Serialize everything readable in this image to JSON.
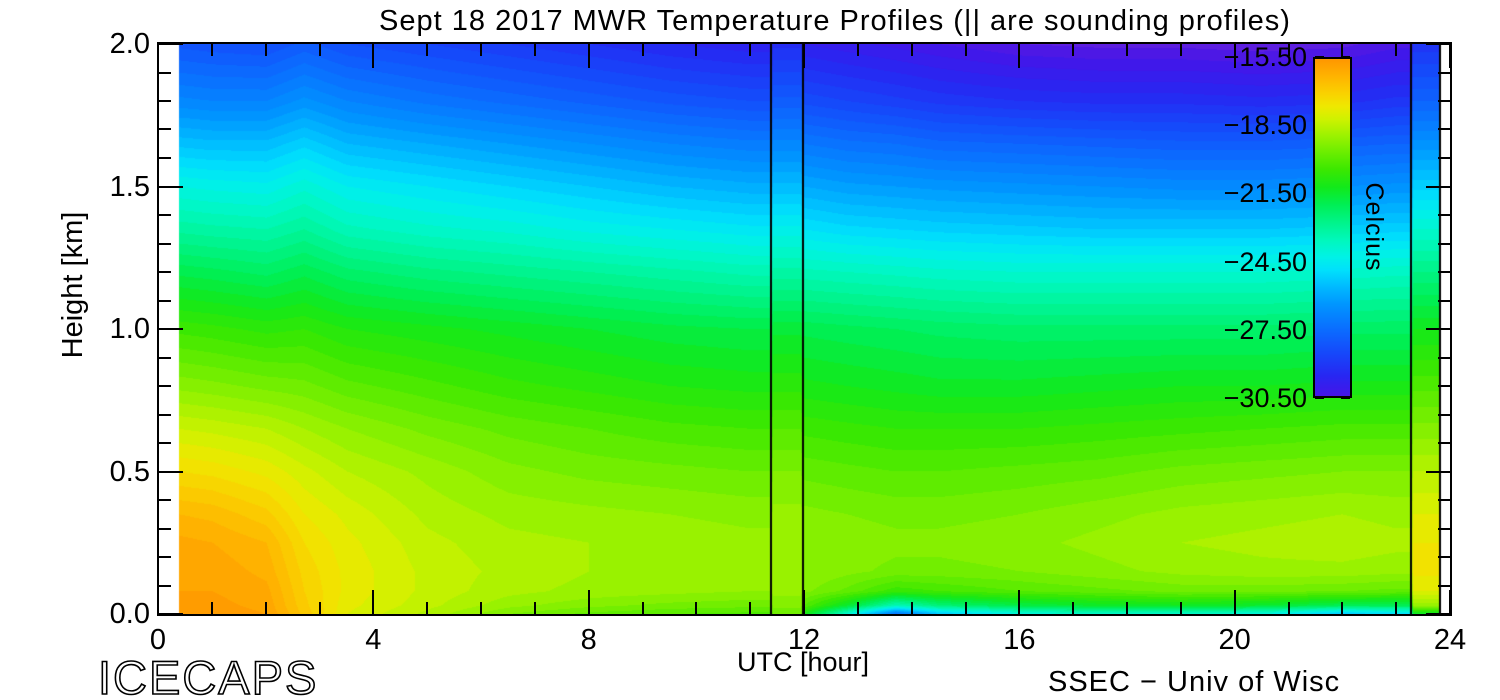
{
  "title": "Sept 18 2017 MWR Temperature Profiles (|| are sounding profiles)",
  "footer": {
    "left": "ICECAPS",
    "right": "SSEC − Univ of Wisc"
  },
  "chart_data": {
    "type": "heatmap",
    "title": "Sept 18 2017 MWR Temperature Profiles (|| are sounding profiles)",
    "xlabel": "UTC [hour]",
    "ylabel": "Height [km]",
    "colorbar_label": "Celcius",
    "xlim": [
      0,
      24
    ],
    "ylim": [
      0,
      2
    ],
    "x_ticks": [
      "0",
      "4",
      "8",
      "12",
      "16",
      "20",
      "24"
    ],
    "x_tick_values": [
      0,
      4,
      8,
      12,
      16,
      20,
      24
    ],
    "x_minor_step": 1,
    "y_ticks": [
      "0.0",
      "0.5",
      "1.0",
      "1.5",
      "2.0"
    ],
    "y_tick_values": [
      0,
      0.5,
      1,
      1.5,
      2
    ],
    "y_minor_step": 0.1,
    "colorbar_ticks": [
      "−15.50",
      "−18.50",
      "−21.50",
      "−24.50",
      "−27.50",
      "−30.50"
    ],
    "colorbar_tick_values": [
      -15.5,
      -18.5,
      -21.5,
      -24.5,
      -27.5,
      -30.5
    ],
    "temp_range": [
      -30.5,
      -15.5
    ],
    "contour_step": 0.3,
    "data_time_range": [
      0.37,
      23.81
    ],
    "sounding_lines": [
      11.38,
      11.98,
      23.28,
      23.81
    ],
    "palette": [
      [
        -31.5,
        "#7A2CD6"
      ],
      [
        -30.5,
        "#4515E8"
      ],
      [
        -29.6,
        "#2727F2"
      ],
      [
        -28.6,
        "#1648FA"
      ],
      [
        -27.5,
        "#0A6EFF"
      ],
      [
        -26.4,
        "#0096FF"
      ],
      [
        -25.6,
        "#00BCFF"
      ],
      [
        -24.9,
        "#00E0FC"
      ],
      [
        -24.3,
        "#00F2E6"
      ],
      [
        -23.6,
        "#00F8BE"
      ],
      [
        -22.8,
        "#00F48C"
      ],
      [
        -22.0,
        "#00EF55"
      ],
      [
        -21.2,
        "#12E91A"
      ],
      [
        -20.4,
        "#3CE800"
      ],
      [
        -19.6,
        "#6FEE00"
      ],
      [
        -18.9,
        "#9CF200"
      ],
      [
        -18.2,
        "#CDF200"
      ],
      [
        -17.6,
        "#EFE800"
      ],
      [
        -17.0,
        "#FAD000"
      ],
      [
        -16.3,
        "#FFB400"
      ],
      [
        -15.6,
        "#FF9A00"
      ],
      [
        -15.0,
        "#FF8800"
      ]
    ],
    "grid": {
      "times": [
        0.37,
        1.0,
        2.0,
        2.7,
        3.5,
        5.0,
        6.5,
        8.0,
        9.5,
        11.0,
        11.38,
        11.42,
        11.94,
        11.98,
        12.8,
        13.7,
        14.5,
        16.0,
        17.5,
        19.0,
        20.5,
        22.0,
        23.0,
        23.28,
        23.32,
        23.81
      ],
      "heights": [
        0,
        0.03,
        0.08,
        0.15,
        0.25,
        0.35,
        0.5,
        0.65,
        0.8,
        1.0,
        1.2,
        1.35,
        1.5,
        1.65,
        1.8,
        2.0
      ],
      "temps": [
        [
          -15.6,
          -15.7,
          -15.8,
          -15.9,
          -16.0,
          -16.4,
          -17.3,
          -18.2,
          -19.2,
          -20.4,
          -21.9,
          -23.1,
          -24.2,
          -25.5,
          -26.8,
          -28.2
        ],
        [
          -15.6,
          -15.7,
          -15.8,
          -15.9,
          -16.1,
          -16.5,
          -17.4,
          -18.3,
          -19.3,
          -20.5,
          -22.0,
          -23.2,
          -24.3,
          -25.6,
          -26.9,
          -28.3
        ],
        [
          -15.8,
          -15.9,
          -16.0,
          -16.2,
          -16.4,
          -16.9,
          -17.7,
          -18.5,
          -19.5,
          -20.7,
          -22.2,
          -23.3,
          -24.4,
          -25.6,
          -26.9,
          -28.4
        ],
        [
          -16.8,
          -16.9,
          -17.0,
          -17.1,
          -17.3,
          -17.6,
          -18.1,
          -18.8,
          -19.6,
          -20.6,
          -21.9,
          -23.0,
          -24.0,
          -25.2,
          -26.5,
          -28.0
        ],
        [
          -17.9,
          -17.8,
          -17.7,
          -17.7,
          -17.8,
          -18.0,
          -18.5,
          -19.1,
          -19.9,
          -20.9,
          -22.3,
          -23.5,
          -24.5,
          -25.7,
          -26.9,
          -28.4
        ],
        [
          -18.6,
          -18.4,
          -18.3,
          -18.3,
          -18.4,
          -18.6,
          -18.9,
          -19.5,
          -20.2,
          -21.1,
          -22.6,
          -23.8,
          -24.8,
          -26.0,
          -27.3,
          -28.7
        ],
        [
          -19.4,
          -19.0,
          -18.7,
          -18.6,
          -18.7,
          -18.9,
          -19.3,
          -19.8,
          -20.5,
          -21.3,
          -22.8,
          -24.0,
          -25.1,
          -26.3,
          -27.6,
          -29.0
        ],
        [
          -19.8,
          -19.3,
          -18.9,
          -18.8,
          -18.8,
          -19.0,
          -19.5,
          -20.0,
          -20.7,
          -21.5,
          -23.0,
          -24.3,
          -25.4,
          -26.6,
          -27.9,
          -29.3
        ],
        [
          -20.0,
          -19.5,
          -19.0,
          -18.9,
          -18.9,
          -19.1,
          -19.6,
          -20.2,
          -20.9,
          -21.7,
          -23.2,
          -24.5,
          -25.7,
          -26.9,
          -28.2,
          -29.6
        ],
        [
          -20.1,
          -19.6,
          -19.1,
          -19.0,
          -19.0,
          -19.2,
          -19.7,
          -20.3,
          -21.0,
          -21.8,
          -23.4,
          -24.7,
          -25.9,
          -27.1,
          -28.4,
          -29.8
        ],
        [
          -20.1,
          -19.6,
          -19.1,
          -19.0,
          -19.0,
          -19.2,
          -19.7,
          -20.3,
          -21.0,
          -21.8,
          -23.4,
          -24.7,
          -25.9,
          -27.1,
          -28.4,
          -29.8
        ],
        [
          -19.6,
          -19.3,
          -19.0,
          -18.9,
          -18.9,
          -19.0,
          -19.4,
          -20.0,
          -20.7,
          -21.6,
          -23.2,
          -24.4,
          -25.6,
          -26.8,
          -28.0,
          -29.4
        ],
        [
          -19.6,
          -19.3,
          -19.0,
          -18.9,
          -18.9,
          -19.0,
          -19.4,
          -20.0,
          -20.7,
          -21.6,
          -23.2,
          -24.4,
          -25.6,
          -26.8,
          -28.0,
          -29.4
        ],
        [
          -21.0,
          -20.0,
          -19.3,
          -19.1,
          -19.1,
          -19.3,
          -19.8,
          -20.4,
          -21.1,
          -21.9,
          -23.5,
          -24.8,
          -26.0,
          -27.2,
          -28.5,
          -29.9
        ],
        [
          -24.0,
          -21.5,
          -19.8,
          -19.3,
          -19.2,
          -19.4,
          -19.9,
          -20.5,
          -21.2,
          -22.0,
          -23.6,
          -25.0,
          -26.2,
          -27.4,
          -28.7,
          -30.1
        ],
        [
          -27.5,
          -23.5,
          -20.5,
          -19.5,
          -19.3,
          -19.5,
          -20.0,
          -20.6,
          -21.3,
          -22.1,
          -23.7,
          -25.1,
          -26.3,
          -27.5,
          -28.9,
          -30.3
        ],
        [
          -25.5,
          -22.5,
          -20.3,
          -19.5,
          -19.3,
          -19.5,
          -20.0,
          -20.6,
          -21.4,
          -22.2,
          -23.8,
          -25.2,
          -26.4,
          -27.7,
          -29.1,
          -30.5
        ],
        [
          -24.2,
          -21.8,
          -20.0,
          -19.4,
          -19.2,
          -19.4,
          -19.9,
          -20.6,
          -21.4,
          -22.3,
          -23.9,
          -25.3,
          -26.5,
          -27.8,
          -29.3,
          -30.8
        ],
        [
          -23.8,
          -21.4,
          -19.8,
          -19.2,
          -19.0,
          -19.2,
          -19.8,
          -20.5,
          -21.3,
          -22.3,
          -23.9,
          -25.4,
          -26.6,
          -27.9,
          -29.4,
          -30.9
        ],
        [
          -23.8,
          -21.3,
          -19.6,
          -19.0,
          -18.8,
          -19.0,
          -19.6,
          -20.4,
          -21.2,
          -22.3,
          -23.9,
          -25.4,
          -26.7,
          -28.0,
          -29.4,
          -30.9
        ],
        [
          -24.2,
          -21.5,
          -19.6,
          -18.9,
          -18.7,
          -18.9,
          -19.5,
          -20.3,
          -21.2,
          -22.3,
          -23.9,
          -25.4,
          -26.7,
          -28.0,
          -29.5,
          -31.0
        ],
        [
          -25.5,
          -22.0,
          -19.7,
          -18.9,
          -18.6,
          -18.8,
          -19.4,
          -20.2,
          -21.1,
          -22.2,
          -23.8,
          -25.3,
          -26.6,
          -27.9,
          -29.4,
          -30.9
        ],
        [
          -25.0,
          -22.0,
          -19.8,
          -19.0,
          -18.7,
          -18.9,
          -19.4,
          -20.2,
          -21.1,
          -22.2,
          -23.7,
          -25.2,
          -26.5,
          -27.8,
          -29.2,
          -30.6
        ],
        [
          -25.0,
          -22.0,
          -19.8,
          -19.0,
          -18.7,
          -18.9,
          -19.4,
          -20.2,
          -21.1,
          -22.2,
          -23.7,
          -25.2,
          -26.5,
          -27.8,
          -29.2,
          -30.6
        ],
        [
          -21.5,
          -19.0,
          -17.9,
          -17.5,
          -17.6,
          -17.9,
          -18.5,
          -19.3,
          -20.1,
          -21.2,
          -22.7,
          -23.9,
          -25.2,
          -26.5,
          -27.8,
          -29.2
        ],
        [
          -21.5,
          -19.0,
          -17.9,
          -17.5,
          -17.6,
          -17.9,
          -18.5,
          -19.3,
          -20.1,
          -21.2,
          -22.7,
          -23.9,
          -25.2,
          -26.5,
          -27.8,
          -29.2
        ]
      ]
    }
  }
}
